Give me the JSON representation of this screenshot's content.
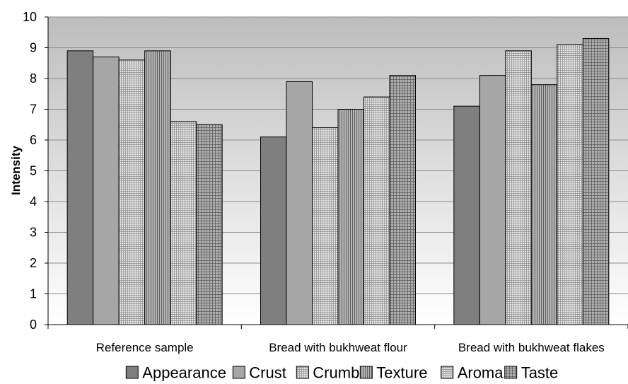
{
  "chart_data": {
    "type": "bar",
    "title": "",
    "xlabel": "",
    "ylabel": "Intensity",
    "ylim": [
      0,
      10
    ],
    "yticks": [
      0,
      1,
      2,
      3,
      4,
      5,
      6,
      7,
      8,
      9,
      10
    ],
    "grid": true,
    "legend_position": "bottom",
    "categories": [
      "Reference sample",
      "Bread with bukhweat flour",
      "Bread with bukhweat flakes"
    ],
    "series": [
      {
        "name": "Appearance",
        "values": [
          8.9,
          6.1,
          7.1
        ],
        "color": "#7f7f7f",
        "pattern": "solid"
      },
      {
        "name": "Crust",
        "values": [
          8.7,
          7.9,
          8.1
        ],
        "color": "#a6a6a6",
        "pattern": "solid"
      },
      {
        "name": "Crumb",
        "values": [
          8.6,
          6.4,
          8.9
        ],
        "color": "#d0d0d0",
        "pattern": "fine-grid"
      },
      {
        "name": "Texture",
        "values": [
          8.9,
          7.0,
          7.8
        ],
        "color": "#909090",
        "pattern": "vertical-lines"
      },
      {
        "name": "Aroma",
        "values": [
          6.6,
          7.4,
          9.1
        ],
        "color": "#ababab",
        "pattern": "fine-grid"
      },
      {
        "name": "Taste",
        "values": [
          6.5,
          8.1,
          9.3
        ],
        "color": "#9a9a9a",
        "pattern": "grid"
      }
    ]
  }
}
